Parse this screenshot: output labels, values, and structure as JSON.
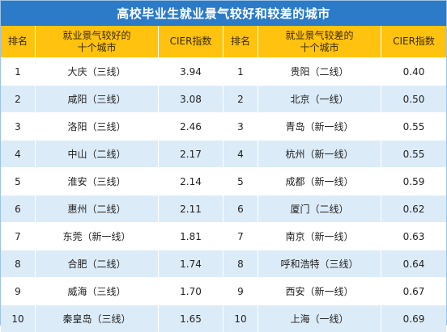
{
  "title": "高校毕业生就业景气较好和较差的城市",
  "headers": {
    "rank_left": "排名",
    "city_left_line1": "就业景气较好的",
    "city_left_line2": "十个城市",
    "index_left": "CIER指数",
    "rank_right": "排名",
    "city_right_line1": "就业景气较差的",
    "city_right_line2": "十个城市",
    "index_right": "CIER指数"
  },
  "rows": [
    {
      "rank_l": "1",
      "city_l": "大庆（三线）",
      "idx_l": "3.94",
      "rank_r": "1",
      "city_r": "贵阳（二线）",
      "idx_r": "0.40"
    },
    {
      "rank_l": "2",
      "city_l": "咸阳（三线）",
      "idx_l": "3.08",
      "rank_r": "2",
      "city_r": "北京（一线）",
      "idx_r": "0.50"
    },
    {
      "rank_l": "3",
      "city_l": "洛阳（三线）",
      "idx_l": "2.46",
      "rank_r": "3",
      "city_r": "青岛（新一线）",
      "idx_r": "0.55"
    },
    {
      "rank_l": "4",
      "city_l": "中山（二线）",
      "idx_l": "2.17",
      "rank_r": "4",
      "city_r": "杭州（新一线）",
      "idx_r": "0.55"
    },
    {
      "rank_l": "5",
      "city_l": "淮安（三线）",
      "idx_l": "2.14",
      "rank_r": "5",
      "city_r": "成都（新一线）",
      "idx_r": "0.59"
    },
    {
      "rank_l": "6",
      "city_l": "惠州（二线）",
      "idx_l": "2.11",
      "rank_r": "6",
      "city_r": "厦门（二线）",
      "idx_r": "0.62"
    },
    {
      "rank_l": "7",
      "city_l": "东莞（新一线）",
      "idx_l": "1.81",
      "rank_r": "7",
      "city_r": "南京（新一线）",
      "idx_r": "0.63"
    },
    {
      "rank_l": "8",
      "city_l": "合肥（二线）",
      "idx_l": "1.74",
      "rank_r": "8",
      "city_r": "呼和浩特（三线）",
      "idx_r": "0.64"
    },
    {
      "rank_l": "9",
      "city_l": "威海（三线）",
      "idx_l": "1.70",
      "rank_r": "9",
      "city_r": "西安（新一线）",
      "idx_r": "0.67"
    },
    {
      "rank_l": "10",
      "city_l": "秦皇岛（三线）",
      "idx_l": "1.65",
      "rank_r": "10",
      "city_r": "上海（一线）",
      "idx_r": "0.69"
    }
  ]
}
